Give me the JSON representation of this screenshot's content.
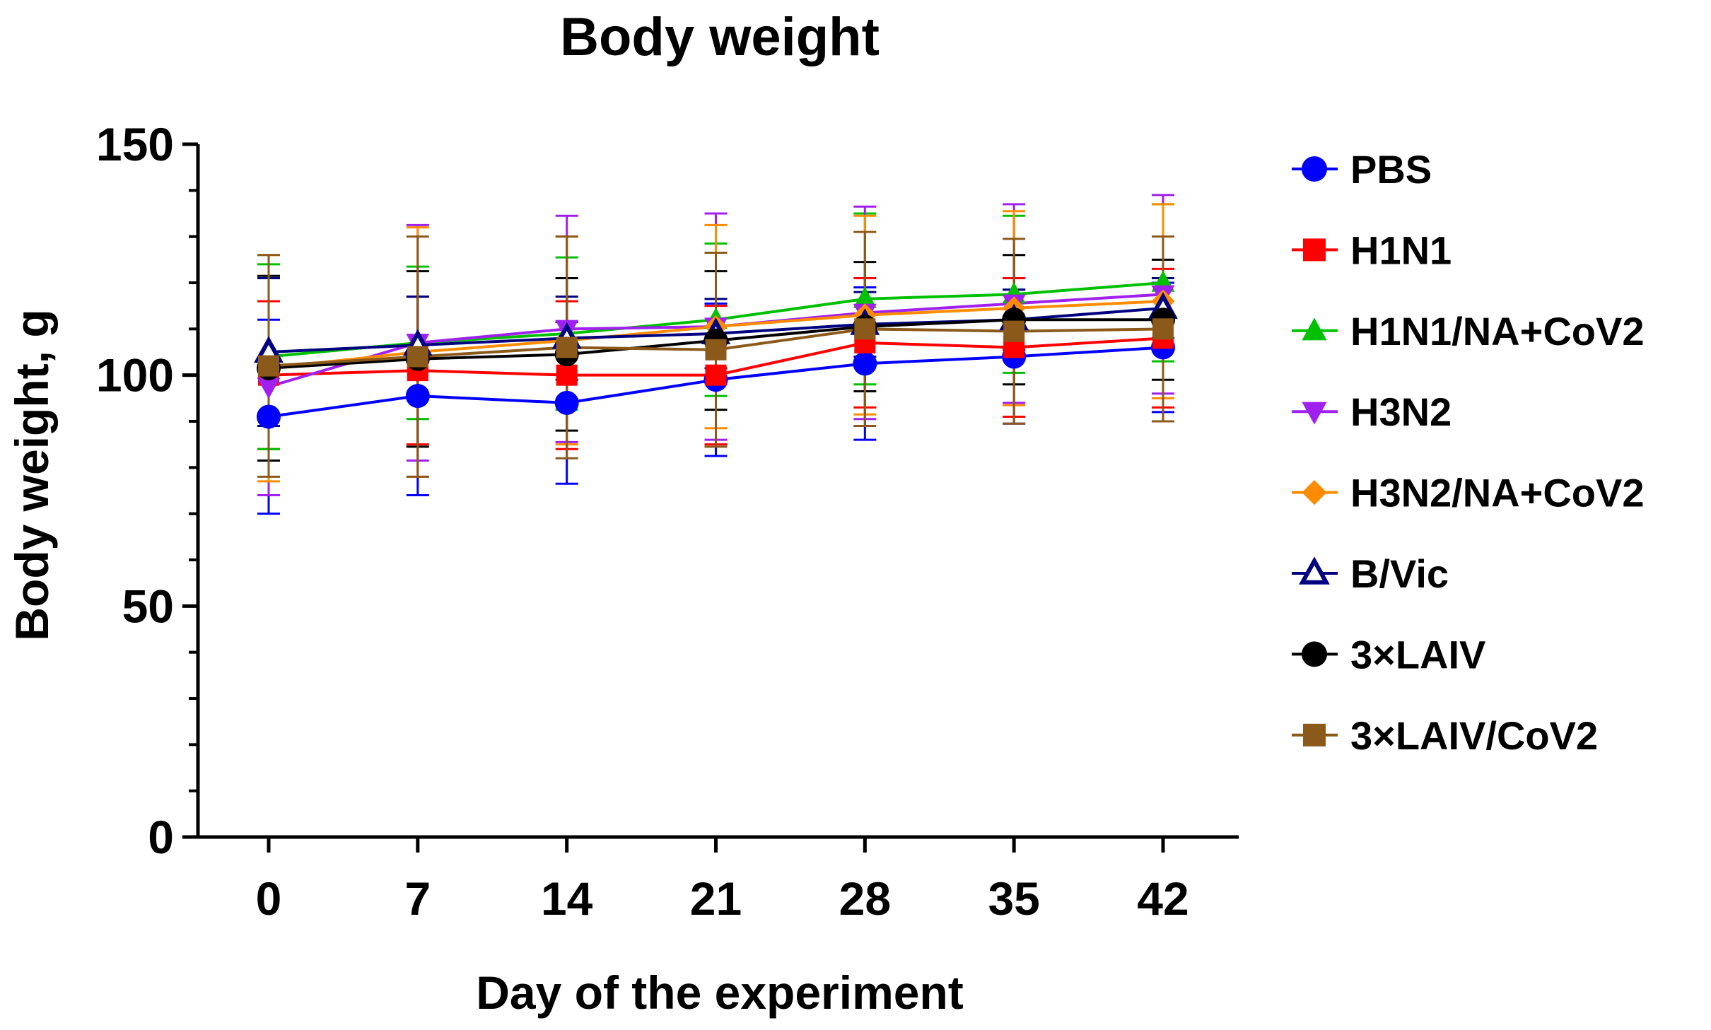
{
  "chart_data": {
    "type": "line",
    "title": "Body weight",
    "xlabel": "Day of the experiment",
    "ylabel": "Body weight, g",
    "x": [
      0,
      7,
      14,
      21,
      28,
      35,
      42
    ],
    "x_tick_labels": [
      "0",
      "7",
      "14",
      "21",
      "28",
      "35",
      "42"
    ],
    "ylim": [
      0,
      150
    ],
    "y_ticks": [
      0,
      50,
      100,
      150
    ],
    "y_tick_labels": [
      "0",
      "50",
      "100",
      "150"
    ],
    "grid": false,
    "error_bars": true,
    "legend_position": "right",
    "series": [
      {
        "name": "PBS",
        "color": "#0000ff",
        "marker": "circle",
        "values": [
          91,
          95.5,
          94,
          99,
          102.5,
          104,
          106
        ],
        "errors": [
          21,
          21.5,
          17.5,
          16.5,
          16.5,
          14.5,
          14
        ]
      },
      {
        "name": "H1N1",
        "color": "#ff0000",
        "marker": "square",
        "values": [
          100,
          101,
          100,
          100,
          107,
          106,
          108
        ],
        "errors": [
          16,
          16,
          16,
          15,
          14,
          15,
          15
        ]
      },
      {
        "name": "H1N1/NA+CoV2",
        "color": "#00c000",
        "marker": "triangle-up",
        "values": [
          104,
          107,
          109,
          112,
          116.5,
          117.5,
          120
        ],
        "errors": [
          20,
          16.5,
          16.5,
          16.5,
          18.5,
          17,
          17
        ]
      },
      {
        "name": "H3N2",
        "color": "#a020f0",
        "marker": "triangle-down",
        "values": [
          97.5,
          107,
          110,
          110.5,
          113.5,
          115.5,
          117.5
        ],
        "errors": [
          23.5,
          25.5,
          24.5,
          24.5,
          23,
          21.5,
          21.5
        ]
      },
      {
        "name": "H3N2/NA+CoV2",
        "color": "#ff8c00",
        "marker": "diamond",
        "values": [
          101.5,
          105,
          107.5,
          110.5,
          113,
          114.5,
          116
        ],
        "errors": [
          24.5,
          27,
          22.5,
          22,
          21.5,
          21,
          21
        ]
      },
      {
        "name": "B/Vic",
        "color": "#000080",
        "marker": "triangle-open",
        "values": [
          105,
          106.5,
          108,
          109,
          111,
          112,
          114.5
        ],
        "errors": [
          16,
          10.5,
          9,
          7.5,
          7,
          6.5,
          6.5
        ]
      },
      {
        "name": "3×LAIV",
        "color": "#000000",
        "marker": "circle",
        "values": [
          101.5,
          103.5,
          104.5,
          107.5,
          110.5,
          112,
          112
        ],
        "errors": [
          20,
          19,
          16.5,
          15,
          14,
          14,
          13
        ]
      },
      {
        "name": "3×LAIV/CoV2",
        "color": "#8b5a1b",
        "marker": "square",
        "values": [
          102,
          104,
          106,
          105.5,
          110,
          109.5,
          110
        ],
        "errors": [
          24,
          26,
          24,
          21,
          21,
          20,
          20
        ]
      }
    ]
  }
}
